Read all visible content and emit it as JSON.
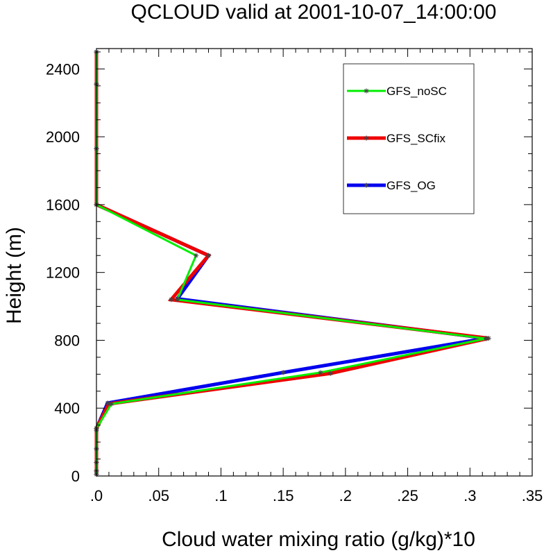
{
  "chart_data": {
    "type": "line",
    "title": "QCLOUD valid at 2001-10-07_14:00:00",
    "xlabel": "Cloud water mixing ratio (g/kg)*10",
    "ylabel": "Height (m)",
    "xlim": [
      0,
      0.35
    ],
    "ylim": [
      0,
      2520
    ],
    "x_ticks": [
      ".0",
      ".05",
      ".1",
      ".15",
      ".2",
      ".25",
      ".3",
      ".35"
    ],
    "x_tick_values": [
      0,
      0.05,
      0.1,
      0.15,
      0.2,
      0.25,
      0.3,
      0.35
    ],
    "y_ticks": [
      "0",
      "400",
      "800",
      "1200",
      "1600",
      "2000",
      "2400"
    ],
    "y_tick_values": [
      0,
      400,
      800,
      1200,
      1600,
      2000,
      2400
    ],
    "grid": false,
    "legend_position": "top-right",
    "series": [
      {
        "name": "GFS_noSC",
        "color": "#00ee00",
        "line_width": 3,
        "x": [
          0,
          0,
          0,
          0,
          0,
          0,
          0.012,
          0.18,
          0.313,
          0.065,
          0.08,
          0,
          0,
          0,
          0
        ],
        "y": [
          10,
          30,
          80,
          160,
          270,
          280,
          425,
          610,
          810,
          1040,
          1300,
          1600,
          1930,
          2310,
          2500
        ]
      },
      {
        "name": "GFS_SCfix",
        "color": "#ee0000",
        "line_width": 5,
        "x": [
          0,
          0,
          0,
          0,
          0,
          0,
          0.01,
          0.188,
          0.315,
          0.06,
          0.09,
          0,
          0,
          0,
          0
        ],
        "y": [
          10,
          30,
          80,
          160,
          270,
          280,
          425,
          605,
          812,
          1040,
          1300,
          1600,
          1930,
          2310,
          2500
        ]
      },
      {
        "name": "GFS_OG",
        "color": "#0000ee",
        "line_width": 5,
        "x": [
          0,
          0,
          0,
          0,
          0,
          0,
          0.009,
          0.15,
          0.313,
          0.065,
          0.09,
          0,
          0,
          0,
          0
        ],
        "y": [
          10,
          30,
          80,
          160,
          270,
          280,
          430,
          610,
          812,
          1045,
          1300,
          1600,
          1930,
          2310,
          2500
        ]
      }
    ],
    "draw_order": [
      2,
      1,
      0
    ],
    "marker": "asterisk",
    "marker_color": "#444444"
  }
}
